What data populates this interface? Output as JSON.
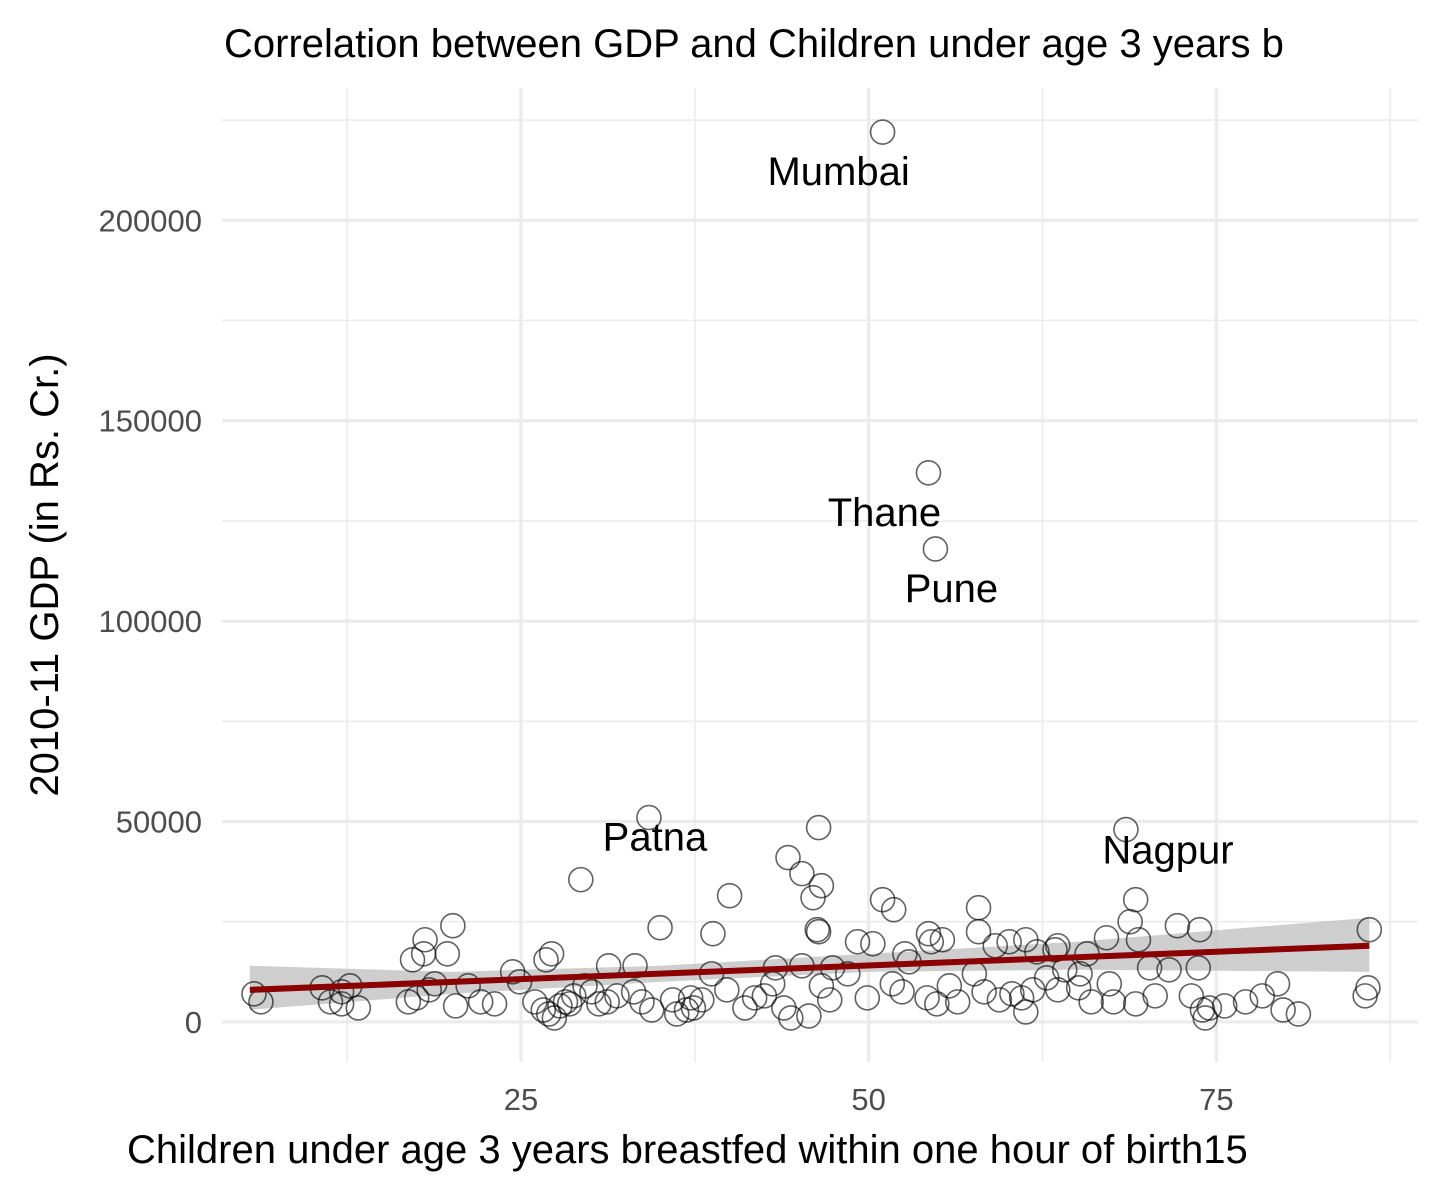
{
  "chart_data": {
    "type": "scatter",
    "title": "Correlation between GDP and Children under age 3 years b",
    "xlabel": "Children under age 3 years breastfed within one hour of birth15",
    "ylabel": "2010-11 GDP (in Rs. Cr.)",
    "xlim": [
      3.5,
      89.5
    ],
    "ylim": [
      -10000,
      233000
    ],
    "x_ticks": [
      25,
      50,
      75
    ],
    "x_tick_labels": [
      "25",
      "50",
      "75"
    ],
    "y_ticks": [
      0,
      50000,
      100000,
      150000,
      200000
    ],
    "y_tick_labels": [
      "0",
      "50000",
      "100000",
      "150000",
      "200000"
    ],
    "grid": true,
    "marker": "open-circle",
    "colors": {
      "points": "#000000",
      "fit_line": "#8b0000",
      "confidence_band": "#bdbdbd",
      "grid": "#ebebeb"
    },
    "fit_line": {
      "x": [
        5.5,
        86
      ],
      "y": [
        8000,
        19000
      ]
    },
    "confidence_band": {
      "x": [
        5.5,
        20,
        35,
        50,
        65,
        86
      ],
      "lower": [
        3000,
        7000,
        10000,
        12500,
        13000,
        12500
      ],
      "upper": [
        14000,
        12500,
        14000,
        17000,
        20000,
        26000
      ]
    },
    "labeled_points": [
      {
        "name": "Mumbai",
        "x": 51,
        "y": 222000
      },
      {
        "name": "Thane",
        "x": 54.3,
        "y": 137000
      },
      {
        "name": "Pune",
        "x": 54.8,
        "y": 118000
      },
      {
        "name": "Patna",
        "x": 34.2,
        "y": 51000
      },
      {
        "name": "Nagpur",
        "x": 68.5,
        "y": 48000
      }
    ],
    "points": [
      [
        51,
        222000
      ],
      [
        54.3,
        137000
      ],
      [
        54.8,
        118000
      ],
      [
        34.2,
        51000
      ],
      [
        68.5,
        48000
      ],
      [
        46.4,
        48500
      ],
      [
        44.2,
        41000
      ],
      [
        40,
        31500
      ],
      [
        29.3,
        35500
      ],
      [
        35,
        23500
      ],
      [
        45.2,
        37000
      ],
      [
        46.6,
        34000
      ],
      [
        46,
        31000
      ],
      [
        46.3,
        23000
      ],
      [
        46.4,
        22500
      ],
      [
        51,
        30500
      ],
      [
        51.8,
        28000
      ],
      [
        57.9,
        28500
      ],
      [
        69.2,
        30500
      ],
      [
        68.8,
        25000
      ],
      [
        72.2,
        24000
      ],
      [
        73.8,
        23000
      ],
      [
        86,
        23000
      ],
      [
        69.4,
        20500
      ],
      [
        62.1,
        17500
      ],
      [
        63.6,
        19000
      ],
      [
        65.7,
        17000
      ],
      [
        67.1,
        21000
      ],
      [
        20.1,
        24000
      ],
      [
        18.1,
        20500
      ],
      [
        19.7,
        17000
      ],
      [
        17.2,
        15500
      ],
      [
        18,
        17000
      ],
      [
        27.2,
        17000
      ],
      [
        26.8,
        15500
      ],
      [
        31.3,
        14000
      ],
      [
        33.2,
        14000
      ],
      [
        38.8,
        22000
      ],
      [
        49.2,
        20000
      ],
      [
        50.3,
        19500
      ],
      [
        52.6,
        17000
      ],
      [
        54.3,
        22000
      ],
      [
        54.5,
        20000
      ],
      [
        55.3,
        20500
      ],
      [
        57.9,
        22500
      ],
      [
        59.1,
        19000
      ],
      [
        60.1,
        20000
      ],
      [
        61.3,
        20500
      ],
      [
        63.4,
        18000
      ],
      [
        65.2,
        12000
      ],
      [
        67.3,
        9500
      ],
      [
        70.2,
        13500
      ],
      [
        71.6,
        13000
      ],
      [
        73.7,
        13500
      ],
      [
        85.9,
        8500
      ],
      [
        85.7,
        6500
      ],
      [
        5.8,
        7000
      ],
      [
        6.3,
        5000
      ],
      [
        10.7,
        8500
      ],
      [
        11.3,
        5000
      ],
      [
        12.1,
        7500
      ],
      [
        12.7,
        9000
      ],
      [
        12.1,
        4500
      ],
      [
        13.3,
        3500
      ],
      [
        16.9,
        5000
      ],
      [
        17.5,
        6000
      ],
      [
        18.4,
        8000
      ],
      [
        18.8,
        9500
      ],
      [
        20.3,
        4000
      ],
      [
        21.2,
        9000
      ],
      [
        22.1,
        5000
      ],
      [
        23.1,
        4500
      ],
      [
        24.4,
        12500
      ],
      [
        24.9,
        10000
      ],
      [
        26,
        5000
      ],
      [
        26.6,
        3000
      ],
      [
        27,
        2000
      ],
      [
        27.4,
        1000
      ],
      [
        27.8,
        4000
      ],
      [
        28.2,
        5000
      ],
      [
        28.5,
        4500
      ],
      [
        28.8,
        6500
      ],
      [
        29.6,
        9000
      ],
      [
        30.1,
        7500
      ],
      [
        30.6,
        4500
      ],
      [
        31.2,
        5000
      ],
      [
        31.9,
        6500
      ],
      [
        33.1,
        7500
      ],
      [
        33.7,
        5000
      ],
      [
        34.4,
        3000
      ],
      [
        35.9,
        5500
      ],
      [
        36.2,
        2000
      ],
      [
        36.9,
        3000
      ],
      [
        37.4,
        3500
      ],
      [
        37.2,
        6000
      ],
      [
        38,
        5500
      ],
      [
        38.7,
        12000
      ],
      [
        39.8,
        8000
      ],
      [
        41.1,
        3500
      ],
      [
        41.8,
        6000
      ],
      [
        42.5,
        6500
      ],
      [
        43.1,
        9500
      ],
      [
        43.3,
        13500
      ],
      [
        43.9,
        3500
      ],
      [
        44.4,
        1000
      ],
      [
        45.2,
        14000
      ],
      [
        45.7,
        1500
      ],
      [
        46.6,
        9000
      ],
      [
        47.2,
        5500
      ],
      [
        47.4,
        13500
      ],
      [
        48.5,
        12000
      ],
      [
        49.9,
        6000
      ],
      [
        51.7,
        9500
      ],
      [
        52.4,
        7500
      ],
      [
        52.9,
        15000
      ],
      [
        54.2,
        6000
      ],
      [
        54.9,
        4500
      ],
      [
        55.8,
        9000
      ],
      [
        56.4,
        5000
      ],
      [
        57.6,
        12000
      ],
      [
        58.3,
        7500
      ],
      [
        59.4,
        5500
      ],
      [
        60.3,
        7000
      ],
      [
        61,
        6000
      ],
      [
        61.3,
        2500
      ],
      [
        61.8,
        8000
      ],
      [
        62.8,
        11000
      ],
      [
        63.6,
        8000
      ],
      [
        64.1,
        13000
      ],
      [
        65.1,
        8500
      ],
      [
        66,
        5000
      ],
      [
        67.6,
        5000
      ],
      [
        69.2,
        4500
      ],
      [
        70.6,
        6500
      ],
      [
        73.2,
        6500
      ],
      [
        74,
        3000
      ],
      [
        74.5,
        3500
      ],
      [
        74.2,
        1000
      ],
      [
        75.6,
        4000
      ],
      [
        77.1,
        5000
      ],
      [
        78.3,
        6500
      ],
      [
        79.4,
        9500
      ],
      [
        79.8,
        3000
      ],
      [
        80.9,
        2000
      ]
    ]
  }
}
